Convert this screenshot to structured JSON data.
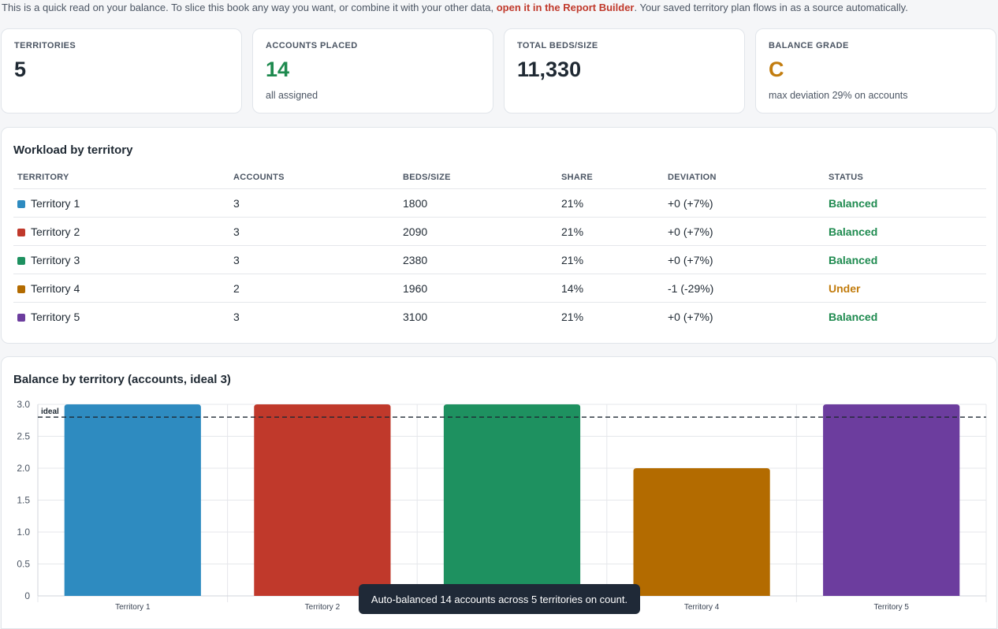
{
  "intro": {
    "before": "This is a quick read on your balance. To slice this book any way you want, or combine it with your other data, ",
    "link": "open it in the Report Builder",
    "after": ". Your saved territory plan flows in as a source automatically."
  },
  "kpis": [
    {
      "label": "TERRITORIES",
      "value": "5",
      "sub": "",
      "color": "#1f2933"
    },
    {
      "label": "ACCOUNTS PLACED",
      "value": "14",
      "sub": "all assigned",
      "color": "#1e8a4f"
    },
    {
      "label": "TOTAL BEDS/SIZE",
      "value": "11,330",
      "sub": "",
      "color": "#1f2933"
    },
    {
      "label": "BALANCE GRADE",
      "value": "C",
      "sub": "max deviation 29% on accounts",
      "color": "#c27c0e"
    }
  ],
  "workload": {
    "title": "Workload by territory",
    "columns": [
      "TERRITORY",
      "ACCOUNTS",
      "BEDS/SIZE",
      "SHARE",
      "DEVIATION",
      "STATUS"
    ],
    "rows": [
      {
        "territory": "Territory 1",
        "accounts": "3",
        "beds": "1800",
        "share": "21%",
        "deviation": "+0 (+7%)",
        "status": "Balanced",
        "color": "#2e8bc0"
      },
      {
        "territory": "Territory 2",
        "accounts": "3",
        "beds": "2090",
        "share": "21%",
        "deviation": "+0 (+7%)",
        "status": "Balanced",
        "color": "#c0392b"
      },
      {
        "territory": "Territory 3",
        "accounts": "3",
        "beds": "2380",
        "share": "21%",
        "deviation": "+0 (+7%)",
        "status": "Balanced",
        "color": "#1e9160"
      },
      {
        "territory": "Territory 4",
        "accounts": "2",
        "beds": "1960",
        "share": "14%",
        "deviation": "-1 (-29%)",
        "status": "Under",
        "color": "#b36b00"
      },
      {
        "territory": "Territory 5",
        "accounts": "3",
        "beds": "3100",
        "share": "21%",
        "deviation": "+0 (+7%)",
        "status": "Balanced",
        "color": "#6c3d9e"
      }
    ]
  },
  "chart_data": {
    "type": "bar",
    "title": "Balance by territory (accounts, ideal 3)",
    "categories": [
      "Territory 1",
      "Territory 2",
      "Territory 3",
      "Territory 4",
      "Territory 5"
    ],
    "values": [
      3,
      3,
      3,
      2,
      3
    ],
    "colors": [
      "#2e8bc0",
      "#c0392b",
      "#1e9160",
      "#b36b00",
      "#6c3d9e"
    ],
    "ylim": [
      0,
      3.0
    ],
    "yticks": [
      "3.0",
      "2.5",
      "2.0",
      "1.5",
      "1.0",
      "0.5",
      "0"
    ],
    "ideal": 2.8,
    "ideal_label": "ideal",
    "grid": true
  },
  "toast": "Auto-balanced 14 accounts across 5 territories on count."
}
